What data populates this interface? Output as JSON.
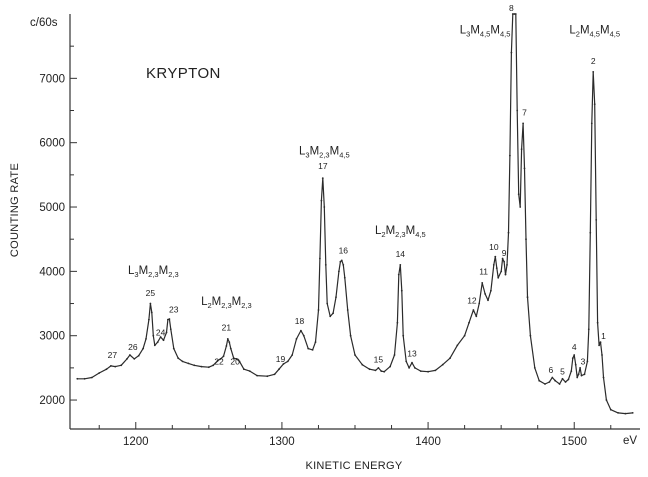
{
  "chart_data": {
    "type": "line",
    "title": "KRYPTON",
    "xlabel": "KINETIC ENERGY",
    "ylabel": "COUNTING RATE",
    "y_unit": "c/60s",
    "x_unit": "eV",
    "xlim": [
      1155,
      1545
    ],
    "ylim": [
      1550,
      8000
    ],
    "x_ticks": [
      1200,
      1300,
      1400,
      1500
    ],
    "y_ticks": [
      2000,
      3000,
      4000,
      5000,
      6000,
      7000
    ],
    "grid": false,
    "series": [
      {
        "points": [
          [
            1160,
            2330
          ],
          [
            1165,
            2330
          ],
          [
            1170,
            2350
          ],
          [
            1175,
            2420
          ],
          [
            1180,
            2480
          ],
          [
            1183,
            2530
          ],
          [
            1186,
            2520
          ],
          [
            1190,
            2540
          ],
          [
            1194,
            2640
          ],
          [
            1196,
            2700
          ],
          [
            1199,
            2640
          ],
          [
            1202,
            2690
          ],
          [
            1205,
            2800
          ],
          [
            1207,
            2950
          ],
          [
            1209,
            3250
          ],
          [
            1210,
            3500
          ],
          [
            1211,
            3360
          ],
          [
            1212,
            3000
          ],
          [
            1213,
            2850
          ],
          [
            1215,
            2900
          ],
          [
            1217,
            2980
          ],
          [
            1219,
            2930
          ],
          [
            1221,
            3050
          ],
          [
            1222,
            3250
          ],
          [
            1223,
            3260
          ],
          [
            1224,
            3100
          ],
          [
            1226,
            2800
          ],
          [
            1229,
            2650
          ],
          [
            1232,
            2600
          ],
          [
            1236,
            2570
          ],
          [
            1240,
            2540
          ],
          [
            1245,
            2520
          ],
          [
            1250,
            2510
          ],
          [
            1253,
            2540
          ],
          [
            1256,
            2610
          ],
          [
            1258,
            2640
          ],
          [
            1260,
            2680
          ],
          [
            1262,
            2840
          ],
          [
            1263,
            2950
          ],
          [
            1264,
            2900
          ],
          [
            1265,
            2800
          ],
          [
            1267,
            2650
          ],
          [
            1269,
            2640
          ],
          [
            1271,
            2600
          ],
          [
            1274,
            2480
          ],
          [
            1278,
            2450
          ],
          [
            1283,
            2380
          ],
          [
            1290,
            2370
          ],
          [
            1295,
            2400
          ],
          [
            1298,
            2480
          ],
          [
            1301,
            2560
          ],
          [
            1304,
            2600
          ],
          [
            1307,
            2700
          ],
          [
            1310,
            2950
          ],
          [
            1313,
            3080
          ],
          [
            1315,
            3000
          ],
          [
            1318,
            2800
          ],
          [
            1321,
            2780
          ],
          [
            1323,
            2900
          ],
          [
            1325,
            3400
          ],
          [
            1326,
            4200
          ],
          [
            1327,
            5100
          ],
          [
            1328,
            5450
          ],
          [
            1329,
            5000
          ],
          [
            1330,
            4100
          ],
          [
            1331,
            3500
          ],
          [
            1333,
            3300
          ],
          [
            1335,
            3350
          ],
          [
            1337,
            3600
          ],
          [
            1339,
            4000
          ],
          [
            1340,
            4150
          ],
          [
            1341,
            4170
          ],
          [
            1342,
            4100
          ],
          [
            1343,
            3900
          ],
          [
            1345,
            3400
          ],
          [
            1347,
            3000
          ],
          [
            1350,
            2700
          ],
          [
            1355,
            2550
          ],
          [
            1360,
            2480
          ],
          [
            1364,
            2460
          ],
          [
            1366,
            2500
          ],
          [
            1368,
            2450
          ],
          [
            1370,
            2440
          ],
          [
            1374,
            2520
          ],
          [
            1377,
            2700
          ],
          [
            1379,
            3200
          ],
          [
            1380,
            3950
          ],
          [
            1381,
            4100
          ],
          [
            1382,
            3700
          ],
          [
            1383,
            3000
          ],
          [
            1385,
            2600
          ],
          [
            1387,
            2500
          ],
          [
            1389,
            2580
          ],
          [
            1391,
            2500
          ],
          [
            1395,
            2450
          ],
          [
            1400,
            2440
          ],
          [
            1405,
            2460
          ],
          [
            1410,
            2550
          ],
          [
            1415,
            2650
          ],
          [
            1420,
            2850
          ],
          [
            1425,
            3000
          ],
          [
            1428,
            3200
          ],
          [
            1431,
            3400
          ],
          [
            1433,
            3300
          ],
          [
            1435,
            3500
          ],
          [
            1437,
            3820
          ],
          [
            1439,
            3650
          ],
          [
            1441,
            3550
          ],
          [
            1443,
            3700
          ],
          [
            1445,
            4100
          ],
          [
            1446,
            4230
          ],
          [
            1447,
            4050
          ],
          [
            1448,
            3900
          ],
          [
            1450,
            4000
          ],
          [
            1451,
            4200
          ],
          [
            1452,
            4150
          ],
          [
            1453,
            3950
          ],
          [
            1454,
            4100
          ],
          [
            1455,
            4600
          ],
          [
            1456,
            5800
          ],
          [
            1457,
            7400
          ],
          [
            1458,
            8000
          ],
          [
            1459,
            8000
          ],
          [
            1460,
            8000
          ],
          [
            1461,
            6500
          ],
          [
            1462,
            5200
          ],
          [
            1463,
            5000
          ],
          [
            1464,
            5900
          ],
          [
            1465,
            6300
          ],
          [
            1466,
            5600
          ],
          [
            1467,
            4500
          ],
          [
            1468,
            3600
          ],
          [
            1470,
            3000
          ],
          [
            1473,
            2500
          ],
          [
            1476,
            2300
          ],
          [
            1480,
            2250
          ],
          [
            1483,
            2280
          ],
          [
            1485,
            2350
          ],
          [
            1487,
            2300
          ],
          [
            1490,
            2250
          ],
          [
            1492,
            2330
          ],
          [
            1494,
            2280
          ],
          [
            1496,
            2320
          ],
          [
            1498,
            2450
          ],
          [
            1499,
            2650
          ],
          [
            1500,
            2700
          ],
          [
            1501,
            2550
          ],
          [
            1502,
            2350
          ],
          [
            1503,
            2400
          ],
          [
            1504,
            2500
          ],
          [
            1505,
            2380
          ],
          [
            1507,
            2400
          ],
          [
            1509,
            2600
          ],
          [
            1510,
            3100
          ],
          [
            1511,
            4600
          ],
          [
            1512,
            6300
          ],
          [
            1513,
            7100
          ],
          [
            1514,
            6600
          ],
          [
            1515,
            4800
          ],
          [
            1516,
            3200
          ],
          [
            1517,
            2850
          ],
          [
            1518,
            2900
          ],
          [
            1519,
            2700
          ],
          [
            1520,
            2350
          ],
          [
            1522,
            2000
          ],
          [
            1525,
            1850
          ],
          [
            1530,
            1800
          ],
          [
            1535,
            1790
          ],
          [
            1540,
            1800
          ]
        ]
      }
    ],
    "annotations": [
      {
        "text": "1",
        "x": 1520,
        "y": 2950
      },
      {
        "text": "2",
        "x": 1513,
        "y": 7220
      },
      {
        "text": "3",
        "x": 1506,
        "y": 2550
      },
      {
        "text": "4",
        "x": 1500,
        "y": 2780
      },
      {
        "text": "5",
        "x": 1492,
        "y": 2400
      },
      {
        "text": "6",
        "x": 1484,
        "y": 2420
      },
      {
        "text": "7",
        "x": 1466,
        "y": 6420
      },
      {
        "text": "8",
        "x": 1457,
        "y": 8050
      },
      {
        "text": "9",
        "x": 1452,
        "y": 4240
      },
      {
        "text": "10",
        "x": 1445,
        "y": 4330
      },
      {
        "text": "11",
        "x": 1438,
        "y": 3950
      },
      {
        "text": "12",
        "x": 1430,
        "y": 3500
      },
      {
        "text": "13",
        "x": 1389,
        "y": 2680
      },
      {
        "text": "14",
        "x": 1381,
        "y": 4220
      },
      {
        "text": "15",
        "x": 1366,
        "y": 2580
      },
      {
        "text": "16",
        "x": 1342,
        "y": 4280
      },
      {
        "text": "17",
        "x": 1328,
        "y": 5590
      },
      {
        "text": "18",
        "x": 1312,
        "y": 3180
      },
      {
        "text": "19",
        "x": 1299,
        "y": 2590
      },
      {
        "text": "20",
        "x": 1268,
        "y": 2550
      },
      {
        "text": "21",
        "x": 1262,
        "y": 3080
      },
      {
        "text": "22",
        "x": 1257,
        "y": 2550
      },
      {
        "text": "23",
        "x": 1226,
        "y": 3360
      },
      {
        "text": "24",
        "x": 1217,
        "y": 3000
      },
      {
        "text": "25",
        "x": 1210,
        "y": 3620
      },
      {
        "text": "26",
        "x": 1198,
        "y": 2780
      },
      {
        "text": "27",
        "x": 1184,
        "y": 2650
      }
    ],
    "group_labels": [
      {
        "main": [
          "L",
          "M",
          "M"
        ],
        "subs": [
          "3",
          "2,3",
          "2,3"
        ],
        "x": 1212,
        "y": 3960
      },
      {
        "main": [
          "L",
          "M",
          "M"
        ],
        "subs": [
          "2",
          "2,3",
          "2,3"
        ],
        "x": 1262,
        "y": 3480
      },
      {
        "main": [
          "L",
          "M",
          "M"
        ],
        "subs": [
          "3",
          "2,3",
          "4,5"
        ],
        "x": 1329,
        "y": 5820
      },
      {
        "main": [
          "L",
          "M",
          "M"
        ],
        "subs": [
          "2",
          "2,3",
          "4,5"
        ],
        "x": 1381,
        "y": 4580
      },
      {
        "main": [
          "L",
          "M",
          "M"
        ],
        "subs": [
          "3",
          "4,5",
          "4,5"
        ],
        "x": 1439,
        "y": 7700
      },
      {
        "main": [
          "L",
          "M",
          "M"
        ],
        "subs": [
          "2",
          "4,5",
          "4,5"
        ],
        "x": 1514,
        "y": 7700
      }
    ]
  }
}
